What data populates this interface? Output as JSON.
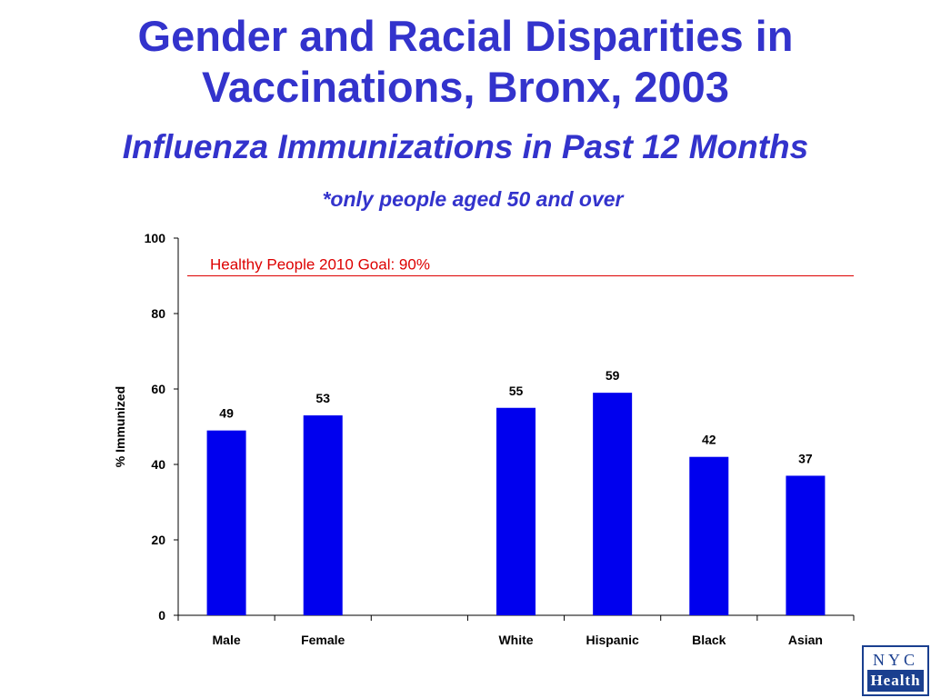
{
  "slide": {
    "title_line1": "Gender and Racial Disparities in",
    "title_line2": "Vaccinations, Bronx, 2003",
    "subtitle": "Influenza Immunizations in Past 12 Months",
    "note": "*only people aged 50 and over"
  },
  "logo": {
    "top": "NYC",
    "bottom": "Health"
  },
  "colors": {
    "title": "#3333cc",
    "bar": "#0000ee",
    "goal_line": "#dd0000"
  },
  "chart_data": {
    "type": "bar",
    "categories": [
      "Male",
      "Female",
      "",
      "White",
      "Hispanic",
      "Black",
      "Asian"
    ],
    "values": [
      49,
      53,
      null,
      55,
      59,
      42,
      37
    ],
    "data_labels": [
      "49",
      "53",
      "",
      "55",
      "59",
      "42",
      "37"
    ],
    "title": "",
    "xlabel": "",
    "ylabel": "% Immunized",
    "ylim": [
      0,
      100
    ],
    "yticks": [
      0,
      20,
      40,
      60,
      80,
      100
    ],
    "grid": false,
    "reference_line": {
      "value": 90,
      "label": "Healthy People 2010 Goal: 90%"
    }
  }
}
